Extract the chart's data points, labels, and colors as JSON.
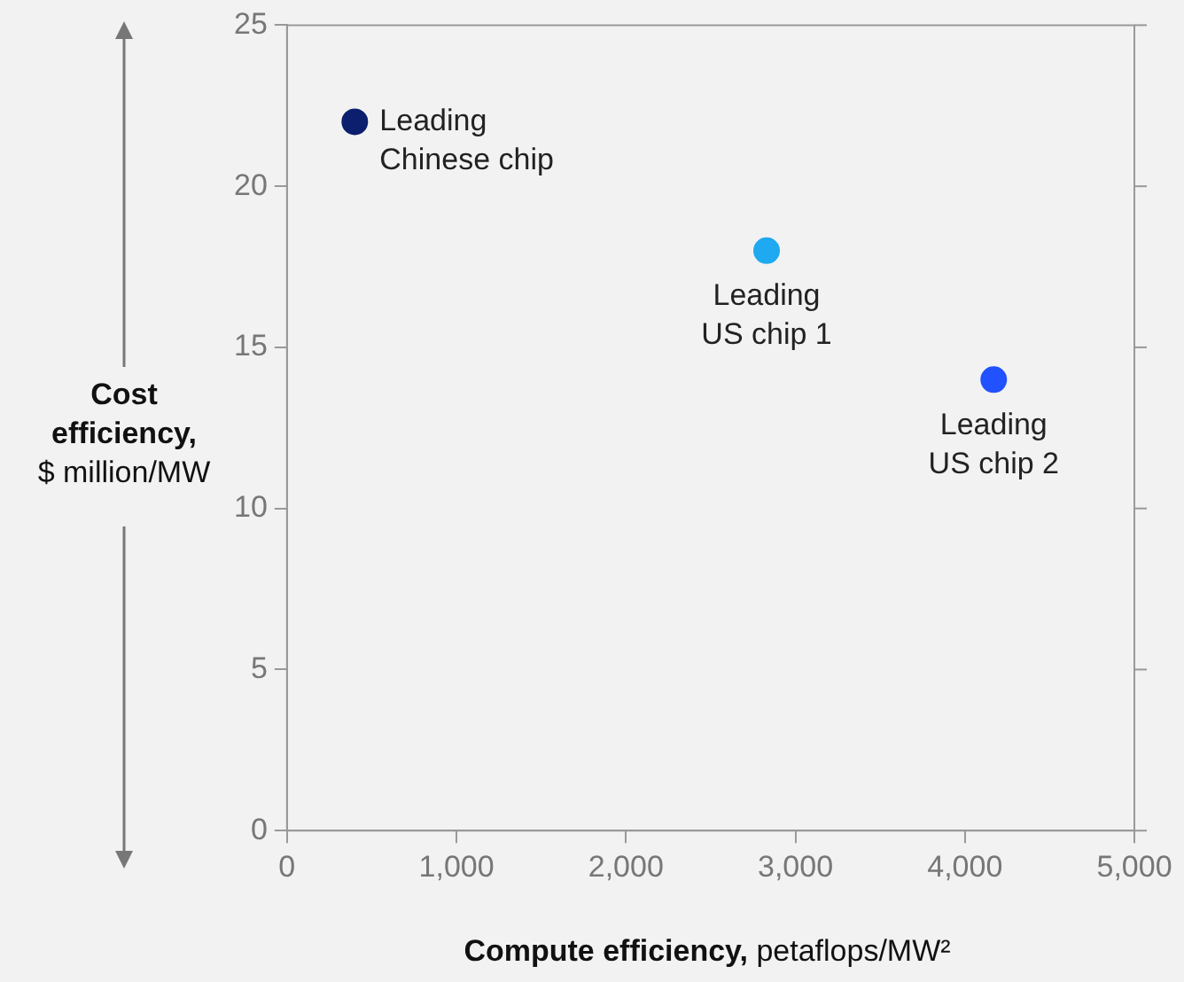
{
  "chart_data": {
    "type": "scatter",
    "xlabel": "Compute efficiency, petaflops/MW²",
    "ylabel": "Cost efficiency, $ million/MW",
    "marker": "circle",
    "series": [
      {
        "name": "Leading Chinese chip",
        "color": "#0c1f6f",
        "x": [
          400
        ],
        "values": [
          22
        ]
      },
      {
        "name": "Leading US chip 1",
        "color": "#1ea9f0",
        "x": [
          2830
        ],
        "values": [
          18
        ]
      },
      {
        "name": "Leading US chip 2",
        "color": "#2251ff",
        "x": [
          4170
        ],
        "values": [
          14
        ]
      }
    ],
    "xlim": [
      0,
      5000
    ],
    "xticks": [
      {
        "value": 0,
        "label": "0"
      },
      {
        "value": 1000,
        "label": "1,000"
      },
      {
        "value": 2000,
        "label": "2,000"
      },
      {
        "value": 3000,
        "label": "3,000"
      },
      {
        "value": 4000,
        "label": "4,000"
      },
      {
        "value": 5000,
        "label": "5,000"
      }
    ],
    "ylim": [
      0,
      25
    ],
    "yticks": [
      0,
      5,
      10,
      15,
      20,
      25
    ]
  }
}
